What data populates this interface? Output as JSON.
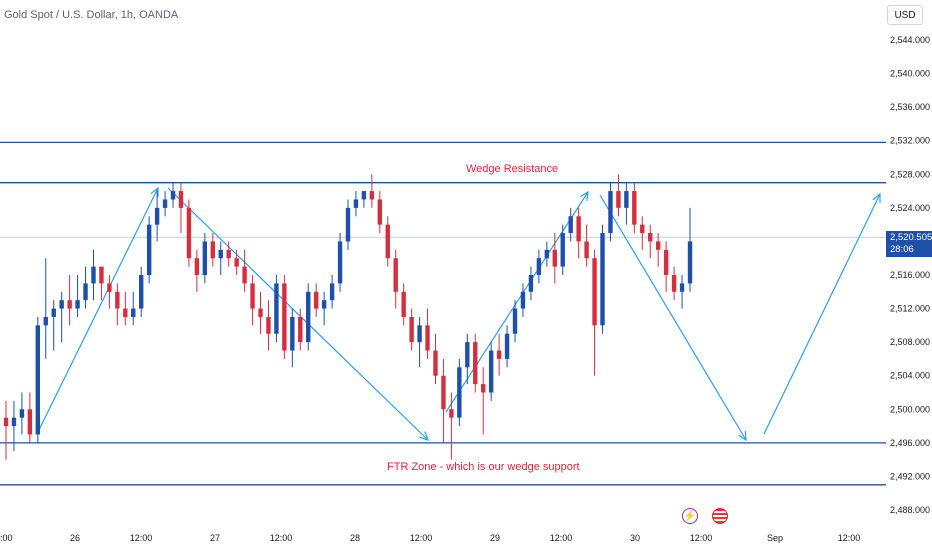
{
  "header": {
    "title": "Gold Spot / U.S. Dollar, 1h, OANDA",
    "currency_button": "USD"
  },
  "price_tag": {
    "price": "2,520.505",
    "countdown": "28:06"
  },
  "annotations": {
    "resistance_label": "Wedge Resistance",
    "support_label": "FTR Zone - which is our wedge support"
  },
  "icons": {
    "events": [
      "lightning-event-icon",
      "us-flag-event-icon"
    ]
  },
  "colors": {
    "up": "#1e50a8",
    "down": "#d32f3f",
    "lines": "#1e50a8",
    "arrows": "#2a9df4",
    "annotation_text": "#e0223b",
    "current_price_line": "#c5cbe6",
    "price_tag_bg": "#1e50a8"
  },
  "chart_data": {
    "type": "candlestick",
    "title": "Gold Spot / U.S. Dollar, 1h, OANDA",
    "y_ticks": [
      "2,488.000",
      "2,492.000",
      "2,496.000",
      "2,500.000",
      "2,504.000",
      "2,508.000",
      "2,512.000",
      "2,516.000",
      "2,520.000",
      "2,524.000",
      "2,528.000",
      "2,532.000",
      "2,536.000",
      "2,540.000",
      "2,544.000"
    ],
    "x_ticks": [
      ":00",
      "26",
      "12:00",
      "27",
      "12:00",
      "28",
      "12:00",
      "29",
      "12:00",
      "30",
      "12:00",
      "Sep",
      "12:00"
    ],
    "ylim": [
      2486,
      2548
    ],
    "horizontal_levels": [
      2531.8,
      2527,
      2496,
      2491
    ],
    "current_price": 2520.505,
    "series": [
      {
        "candles": [
          [
            2499,
            2501,
            2494,
            2498
          ],
          [
            2498,
            2501,
            2495,
            2499
          ],
          [
            2499,
            2502,
            2497,
            2500
          ],
          [
            2500,
            2502,
            2496,
            2497
          ],
          [
            2497,
            2511,
            2496,
            2510
          ],
          [
            2510,
            2518,
            2506,
            2511
          ],
          [
            2511,
            2513,
            2507,
            2512
          ],
          [
            2512,
            2514,
            2508,
            2513
          ],
          [
            2513,
            2516,
            2510,
            2512
          ],
          [
            2512,
            2516,
            2511,
            2513
          ],
          [
            2513,
            2517,
            2512,
            2515
          ],
          [
            2515,
            2519,
            2513,
            2517
          ],
          [
            2517,
            2517,
            2513,
            2515
          ],
          [
            2515,
            2516,
            2512,
            2514
          ],
          [
            2514,
            2515,
            2510,
            2512
          ],
          [
            2512,
            2514,
            2510,
            2511
          ],
          [
            2511,
            2514,
            2510,
            2512
          ],
          [
            2512,
            2517,
            2511,
            2516
          ],
          [
            2516,
            2523,
            2515,
            2522
          ],
          [
            2522,
            2526,
            2520,
            2524
          ],
          [
            2524,
            2526,
            2523,
            2525
          ],
          [
            2525,
            2527,
            2524,
            2526
          ],
          [
            2526,
            2527,
            2521,
            2524
          ],
          [
            2524,
            2525,
            2517,
            2518
          ],
          [
            2518,
            2519,
            2514,
            2516
          ],
          [
            2516,
            2521,
            2515,
            2520
          ],
          [
            2520,
            2521,
            2517,
            2518
          ],
          [
            2518,
            2520,
            2516,
            2519
          ],
          [
            2519,
            2520,
            2517,
            2518
          ],
          [
            2518,
            2519,
            2516,
            2517
          ],
          [
            2517,
            2519,
            2514,
            2515
          ],
          [
            2515,
            2516,
            2510,
            2512
          ],
          [
            2512,
            2514,
            2509,
            2511
          ],
          [
            2511,
            2513,
            2507,
            2509
          ],
          [
            2509,
            2516,
            2508,
            2515
          ],
          [
            2515,
            2516,
            2506,
            2507
          ],
          [
            2507,
            2512,
            2505,
            2511
          ],
          [
            2511,
            2512,
            2507,
            2508
          ],
          [
            2508,
            2515,
            2507,
            2514
          ],
          [
            2514,
            2515,
            2511,
            2512
          ],
          [
            2512,
            2514,
            2510,
            2513
          ],
          [
            2513,
            2516,
            2512,
            2515
          ],
          [
            2515,
            2521,
            2514,
            2520
          ],
          [
            2520,
            2525,
            2519,
            2524
          ],
          [
            2524,
            2526,
            2523,
            2525
          ],
          [
            2525,
            2526,
            2524,
            2526
          ],
          [
            2526,
            2528,
            2524,
            2525
          ],
          [
            2525,
            2526,
            2521,
            2522
          ],
          [
            2522,
            2523,
            2517,
            2518
          ],
          [
            2518,
            2519,
            2512,
            2514
          ],
          [
            2514,
            2515,
            2510,
            2511
          ],
          [
            2511,
            2512,
            2507,
            2508
          ],
          [
            2508,
            2511,
            2505,
            2510
          ],
          [
            2510,
            2512,
            2506,
            2507
          ],
          [
            2507,
            2509,
            2503,
            2504
          ],
          [
            2504,
            2506,
            2496,
            2500
          ],
          [
            2500,
            2502,
            2494,
            2499
          ],
          [
            2499,
            2506,
            2498,
            2505
          ],
          [
            2505,
            2509,
            2503,
            2508
          ],
          [
            2508,
            2509,
            2502,
            2503
          ],
          [
            2503,
            2505,
            2497,
            2502
          ],
          [
            2502,
            2508,
            2501,
            2507
          ],
          [
            2507,
            2509,
            2504,
            2506
          ],
          [
            2506,
            2510,
            2505,
            2509
          ],
          [
            2509,
            2513,
            2508,
            2512
          ],
          [
            2512,
            2515,
            2511,
            2514
          ],
          [
            2514,
            2517,
            2513,
            2516
          ],
          [
            2516,
            2519,
            2515,
            2518
          ],
          [
            2518,
            2520,
            2517,
            2519
          ],
          [
            2519,
            2521,
            2515,
            2517
          ],
          [
            2517,
            2522,
            2516,
            2521
          ],
          [
            2521,
            2524,
            2520,
            2523
          ],
          [
            2523,
            2524,
            2518,
            2520
          ],
          [
            2520,
            2522,
            2517,
            2518
          ],
          [
            2518,
            2519,
            2504,
            2510
          ],
          [
            2510,
            2522,
            2509,
            2521
          ],
          [
            2521,
            2527,
            2520,
            2526
          ],
          [
            2526,
            2528,
            2523,
            2524
          ],
          [
            2524,
            2527,
            2522,
            2526
          ],
          [
            2526,
            2527,
            2521,
            2522
          ],
          [
            2522,
            2523,
            2519,
            2521
          ],
          [
            2521,
            2522,
            2518,
            2520
          ],
          [
            2520,
            2521,
            2517,
            2519
          ],
          [
            2519,
            2520,
            2514,
            2516
          ],
          [
            2516,
            2517,
            2513,
            2514
          ],
          [
            2514,
            2516,
            2512,
            2515
          ],
          [
            2515,
            2524,
            2514,
            2520
          ]
        ]
      }
    ]
  }
}
